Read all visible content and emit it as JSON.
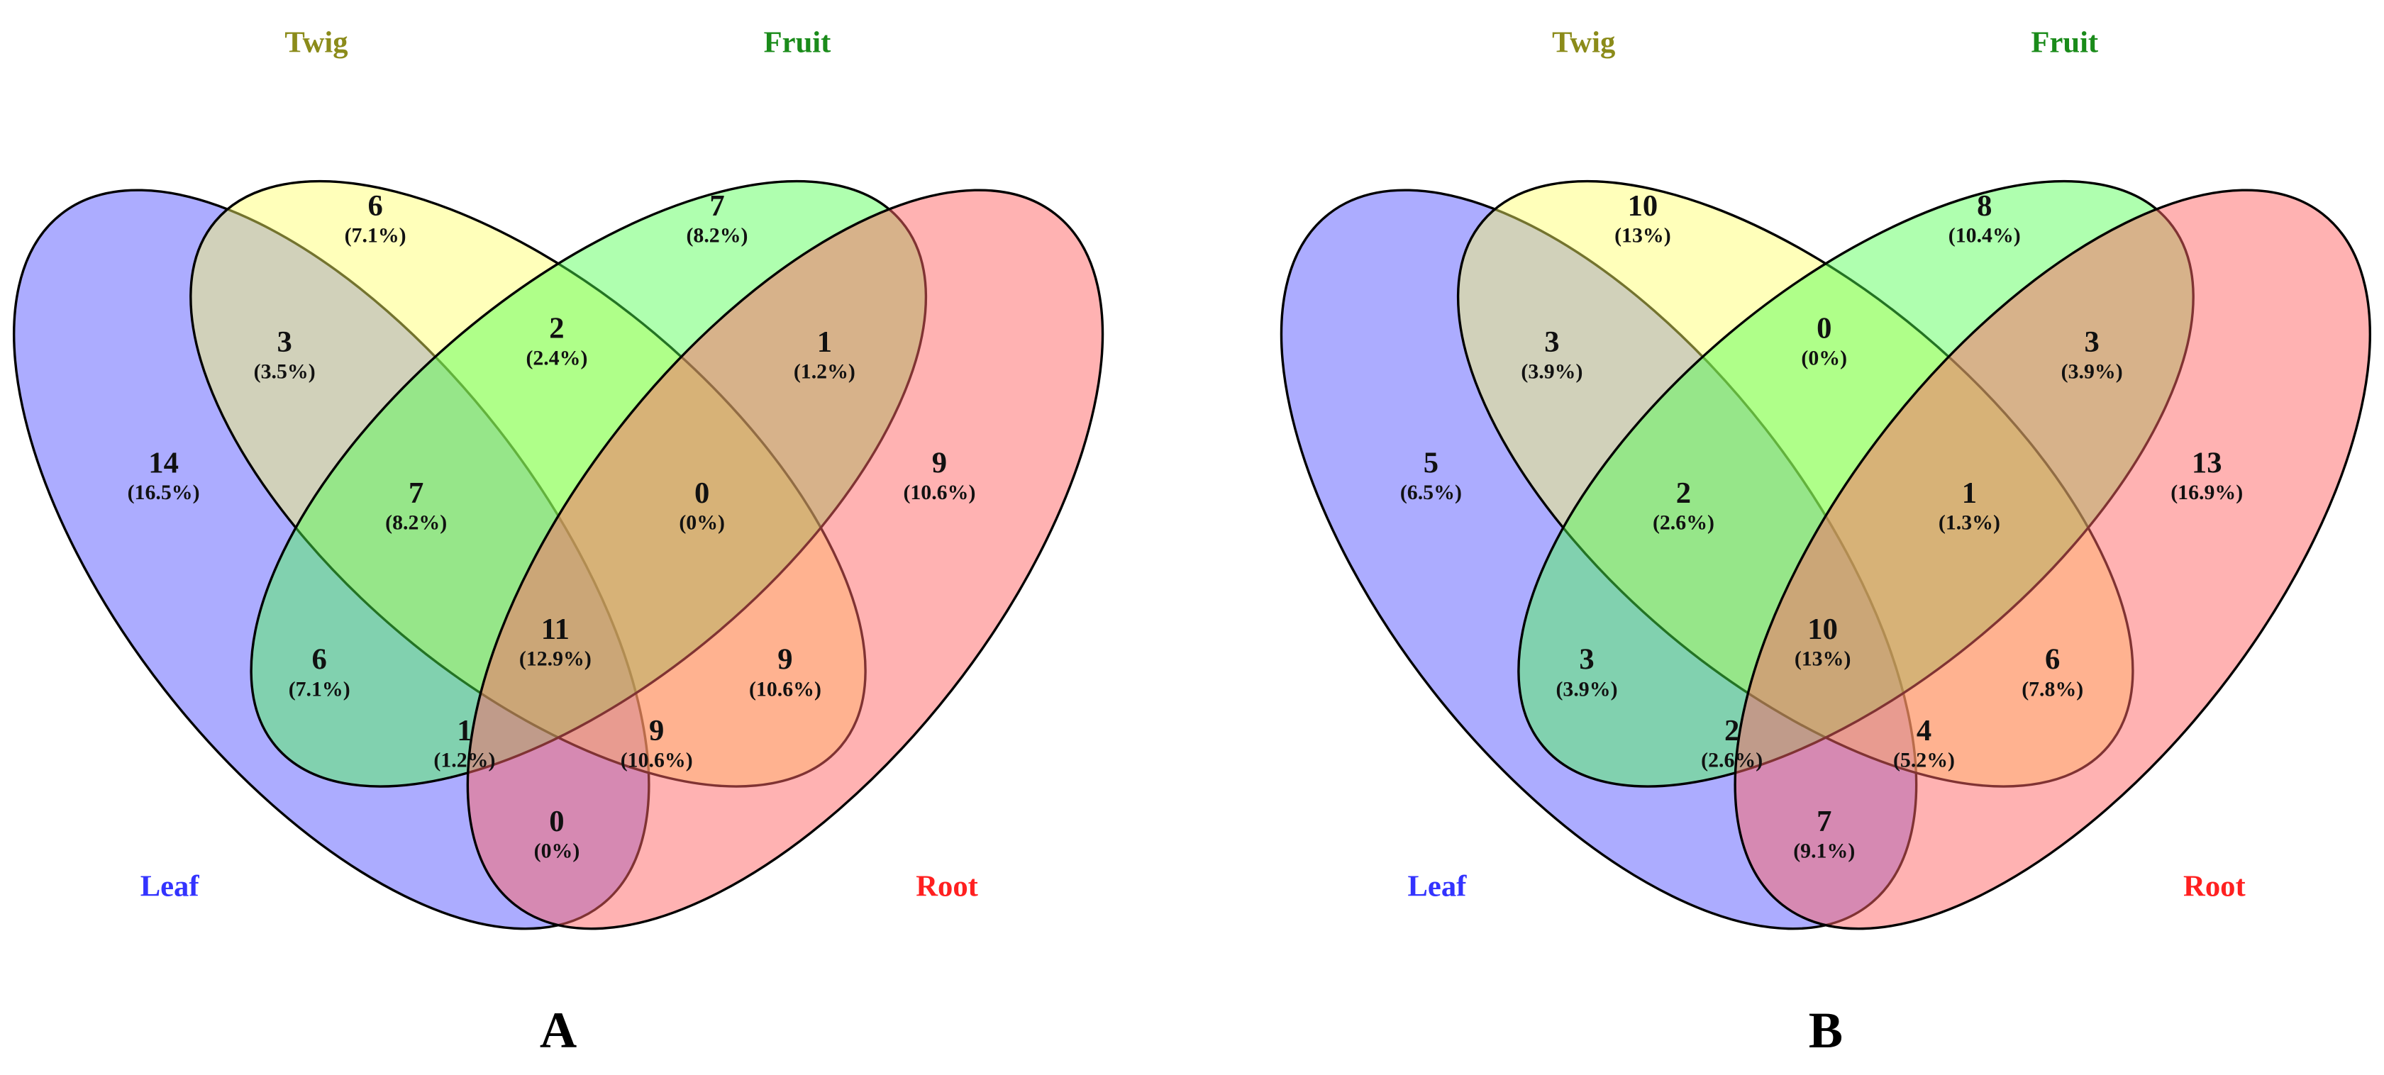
{
  "panels": [
    {
      "label": "A",
      "sets": [
        {
          "name": "Leaf",
          "color": "#5a5aff",
          "label_color": "#3333ff"
        },
        {
          "name": "Twig",
          "color": "#ffff66",
          "label_color": "#8b8b1a"
        },
        {
          "name": "Fruit",
          "color": "#4dff4d",
          "label_color": "#1a8b1a"
        },
        {
          "name": "Root",
          "color": "#ff6666",
          "label_color": "#ff2020"
        }
      ],
      "regions": [
        {
          "count": 6,
          "percent": "(7.1%)"
        },
        {
          "count": 7,
          "percent": "(8.2%)"
        },
        {
          "count": 3,
          "percent": "(3.5%)"
        },
        {
          "count": 2,
          "percent": "(2.4%)"
        },
        {
          "count": 1,
          "percent": "(1.2%)"
        },
        {
          "count": 14,
          "percent": "(16.5%)"
        },
        {
          "count": 7,
          "percent": "(8.2%)"
        },
        {
          "count": 0,
          "percent": "(0%)"
        },
        {
          "count": 9,
          "percent": "(10.6%)"
        },
        {
          "count": 11,
          "percent": "(12.9%)"
        },
        {
          "count": 6,
          "percent": "(7.1%)"
        },
        {
          "count": 9,
          "percent": "(10.6%)"
        },
        {
          "count": 1,
          "percent": "(1.2%)"
        },
        {
          "count": 9,
          "percent": "(10.6%)"
        },
        {
          "count": 0,
          "percent": "(0%)"
        }
      ]
    },
    {
      "label": "B",
      "sets": [
        {
          "name": "Leaf",
          "color": "#5a5aff",
          "label_color": "#3333ff"
        },
        {
          "name": "Twig",
          "color": "#ffff66",
          "label_color": "#8b8b1a"
        },
        {
          "name": "Fruit",
          "color": "#4dff4d",
          "label_color": "#1a8b1a"
        },
        {
          "name": "Root",
          "color": "#ff6666",
          "label_color": "#ff2020"
        }
      ],
      "regions": [
        {
          "count": 10,
          "percent": "(13%)"
        },
        {
          "count": 8,
          "percent": "(10.4%)"
        },
        {
          "count": 3,
          "percent": "(3.9%)"
        },
        {
          "count": 0,
          "percent": "(0%)"
        },
        {
          "count": 3,
          "percent": "(3.9%)"
        },
        {
          "count": 5,
          "percent": "(6.5%)"
        },
        {
          "count": 2,
          "percent": "(2.6%)"
        },
        {
          "count": 1,
          "percent": "(1.3%)"
        },
        {
          "count": 13,
          "percent": "(16.9%)"
        },
        {
          "count": 10,
          "percent": "(13%)"
        },
        {
          "count": 3,
          "percent": "(3.9%)"
        },
        {
          "count": 6,
          "percent": "(7.8%)"
        },
        {
          "count": 2,
          "percent": "(2.6%)"
        },
        {
          "count": 4,
          "percent": "(5.2%)"
        },
        {
          "count": 7,
          "percent": "(9.1%)"
        }
      ]
    }
  ]
}
